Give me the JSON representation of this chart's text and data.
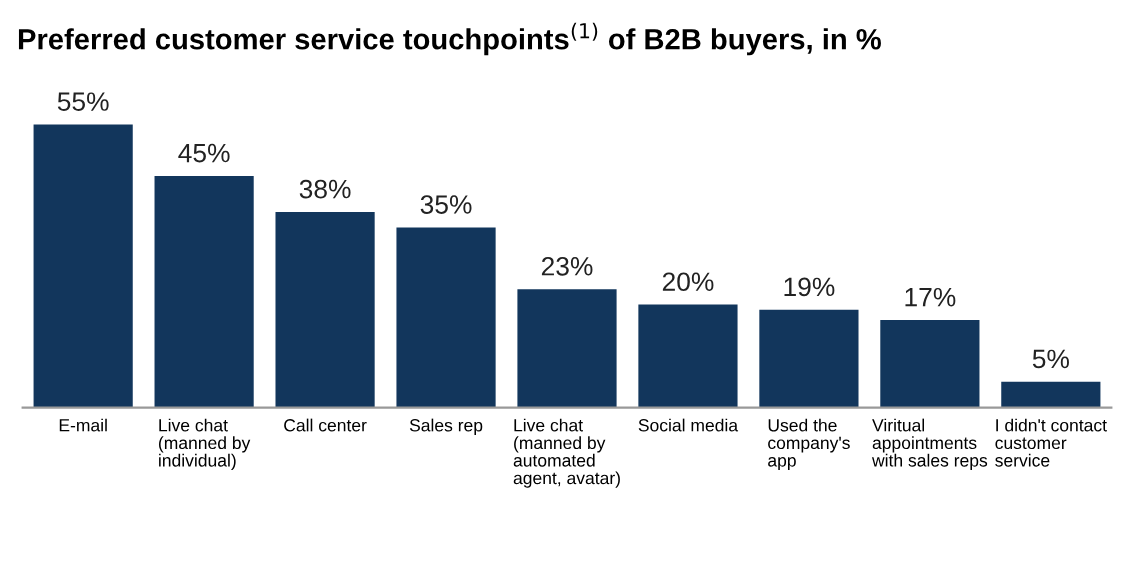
{
  "chart_data": {
    "type": "bar",
    "title": "Preferred customer service touchpoints$^{(1)}$ of B2B buyers, in %",
    "categories": [
      "E-mail",
      "Live chat\n(manned by\nindividual)",
      "Call center",
      "Sales rep",
      "Live chat\n(manned by\nautomated\nagent, avatar)",
      "Social media",
      "Used the\ncompany's\napp",
      "Viritual\nappointments\nwith sales reps",
      "I didn't contact\ncustomer\nservice"
    ],
    "values": [
      55,
      45,
      38,
      35,
      23,
      20,
      19,
      17,
      5
    ],
    "color": "#12365c",
    "data_labels": true,
    "value_labels": [
      "55%",
      "45%",
      "38%",
      "35%",
      "23%",
      "20%",
      "19%",
      "17%",
      "5%"
    ],
    "grid": false,
    "legend": false
  }
}
